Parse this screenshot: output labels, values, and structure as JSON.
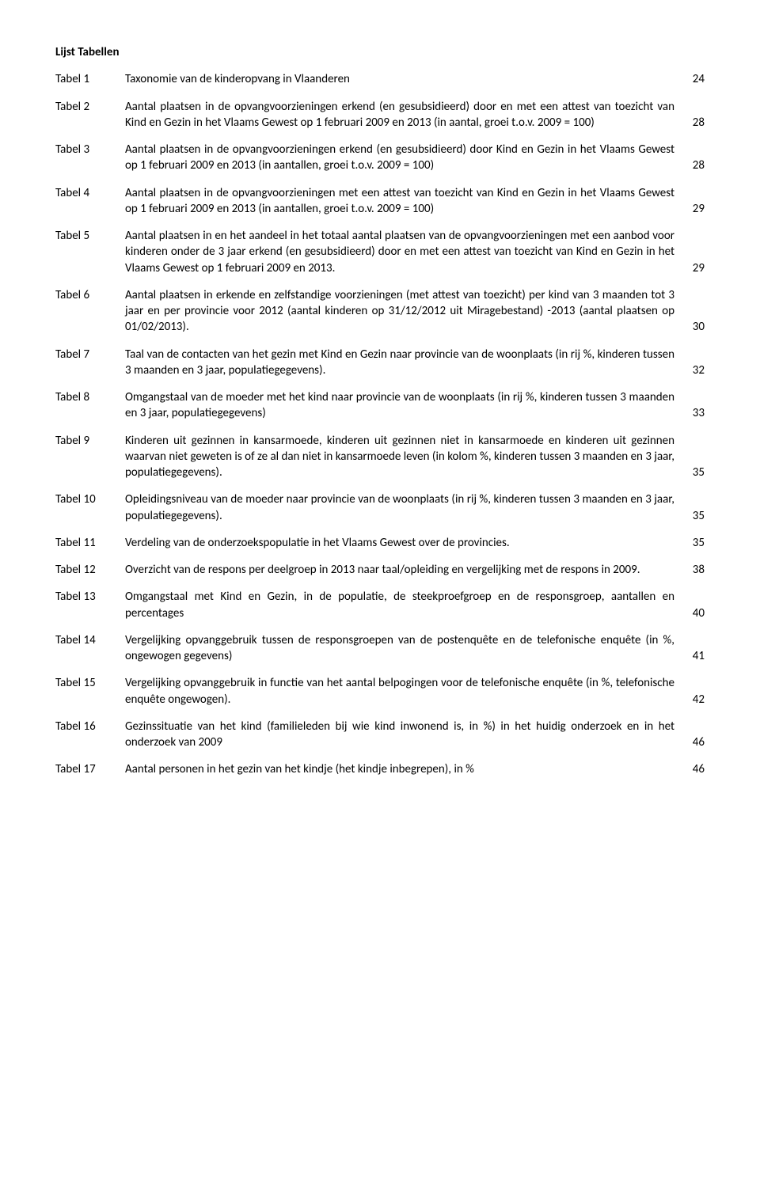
{
  "title": "Lijst Tabellen",
  "entries": [
    {
      "label": "Tabel 1",
      "desc": "Taxonomie van de kinderopvang in Vlaanderen",
      "page": "24"
    },
    {
      "label": "Tabel 2",
      "desc": "Aantal plaatsen in de opvangvoorzieningen erkend (en gesubsidieerd) door en met een attest van toezicht van Kind en Gezin in het Vlaams Gewest op 1 februari 2009 en 2013 (in aantal, groei t.o.v. 2009 = 100)",
      "page": "28"
    },
    {
      "label": "Tabel 3",
      "desc": "Aantal plaatsen in de opvangvoorzieningen erkend (en gesubsidieerd) door Kind en Gezin in het Vlaams Gewest op 1 februari 2009 en 2013 (in aantallen, groei t.o.v. 2009 = 100)",
      "page": "28"
    },
    {
      "label": "Tabel 4",
      "desc": "Aantal plaatsen in de opvangvoorzieningen met een attest van toezicht van Kind en Gezin in het Vlaams Gewest op 1 februari 2009 en 2013 (in aantallen, groei t.o.v. 2009 = 100)",
      "page": "29"
    },
    {
      "label": "Tabel 5",
      "desc": "Aantal plaatsen in en het aandeel in het totaal aantal plaatsen van de opvangvoorzieningen met een aanbod voor kinderen onder de 3 jaar erkend (en gesubsidieerd) door en met een attest van toezicht van Kind en Gezin in het Vlaams Gewest op 1 februari 2009 en 2013.",
      "page": "29"
    },
    {
      "label": "Tabel 6",
      "desc": "Aantal plaatsen in erkende en zelfstandige voorzieningen (met attest van toezicht) per kind van 3 maanden tot 3 jaar en per provincie voor 2012 (aantal kinderen op 31/12/2012 uit Miragebestand) -2013 (aantal plaatsen op 01/02/2013).",
      "page": "30"
    },
    {
      "label": "Tabel 7",
      "desc": "Taal van de contacten van het gezin met Kind en Gezin naar provincie van de woonplaats (in rij %, kinderen tussen 3 maanden en 3 jaar, populatiegegevens).",
      "page": "32"
    },
    {
      "label": "Tabel 8",
      "desc": "Omgangstaal van de moeder met het kind naar provincie van de woonplaats (in rij %, kinderen tussen 3 maanden en 3 jaar, populatiegegevens)",
      "page": "33"
    },
    {
      "label": "Tabel 9",
      "desc": "Kinderen uit gezinnen in kansarmoede, kinderen uit gezinnen niet in kansarmoede en kinderen uit gezinnen waarvan niet geweten is of ze al dan niet in kansarmoede leven (in kolom %, kinderen tussen 3 maanden en 3 jaar, populatiegegevens).",
      "page": "35"
    },
    {
      "label": "Tabel 10",
      "desc": "Opleidingsniveau van de moeder naar provincie van de woonplaats (in rij %, kinderen tussen 3 maanden en 3 jaar, populatiegegevens).",
      "page": "35"
    },
    {
      "label": "Tabel 11",
      "desc": "Verdeling van de onderzoekspopulatie in het Vlaams Gewest over de provincies.",
      "page": "35"
    },
    {
      "label": "Tabel 12",
      "desc": "Overzicht van de respons per deelgroep in 2013 naar taal/opleiding en vergelijking met de respons in 2009.",
      "page": "38"
    },
    {
      "label": "Tabel 13",
      "desc": "Omgangstaal met Kind en Gezin, in de populatie, de steekproefgroep en de responsgroep, aantallen en percentages",
      "page": "40"
    },
    {
      "label": "Tabel 14",
      "desc": "Vergelijking opvanggebruik tussen de responsgroepen van de postenquête en de telefonische enquête (in %, ongewogen gegevens)",
      "page": "41"
    },
    {
      "label": "Tabel 15",
      "desc": "Vergelijking opvanggebruik in functie van het aantal belpogingen voor de telefonische enquête (in %, telefonische enquête ongewogen).",
      "page": "42"
    },
    {
      "label": "Tabel 16",
      "desc": "Gezinssituatie van het kind (familieleden bij wie kind inwonend is, in %) in het huidig onderzoek en in het onderzoek van 2009",
      "page": "46"
    },
    {
      "label": "Tabel 17",
      "desc": "Aantal personen in het gezin van het kindje (het kindje inbegrepen), in %",
      "page": "46"
    }
  ]
}
